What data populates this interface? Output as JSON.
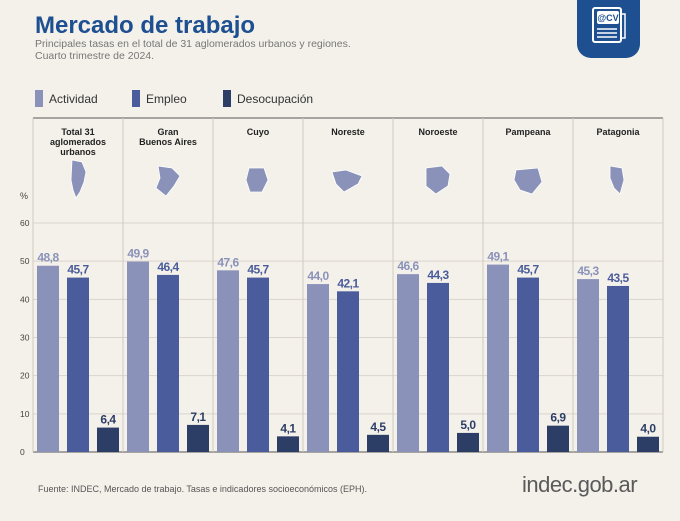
{
  "header": {
    "title": "Mercado de trabajo",
    "subtitle_line1": "Principales tasas en el total de 31 aglomerados urbanos y regiones.",
    "subtitle_line2": "Cuarto trimestre de 2024."
  },
  "badge": {
    "text": "@CV",
    "icon": "cv-document-icon"
  },
  "legend": [
    {
      "label": "Actividad",
      "color": "#8b92ba"
    },
    {
      "label": "Empleo",
      "color": "#4a5c9b"
    },
    {
      "label": "Desocupación",
      "color": "#2c3e66"
    }
  ],
  "footer": {
    "source": "Fuente: INDEC, Mercado de trabajo. Tasas e indicadores socioeconómicos (EPH).",
    "brand": "indec.gob.ar"
  },
  "chart_data": {
    "type": "bar",
    "title": "Mercado de trabajo",
    "ylabel": "%",
    "ylim": [
      0,
      60
    ],
    "yticks": [
      0,
      10,
      20,
      30,
      40,
      50,
      60
    ],
    "grid": true,
    "legend_position": "top-left",
    "categories": [
      "Total 31 aglomerados urbanos",
      "Gran Buenos Aires",
      "Cuyo",
      "Noreste",
      "Noroeste",
      "Pampeana",
      "Patagonia"
    ],
    "category_labels": [
      [
        "Total 31",
        "aglomerados",
        "urbanos"
      ],
      [
        "Gran",
        "Buenos Aires"
      ],
      [
        "Cuyo"
      ],
      [
        "Noreste"
      ],
      [
        "Noroeste"
      ],
      [
        "Pampeana"
      ],
      [
        "Patagonia"
      ]
    ],
    "category_icons": [
      "map-argentina-icon",
      "map-gran-buenos-aires-icon",
      "map-cuyo-icon",
      "map-noreste-icon",
      "map-noroeste-icon",
      "map-pampeana-icon",
      "map-patagonia-icon"
    ],
    "series": [
      {
        "name": "Actividad",
        "color": "#8b92ba",
        "values": [
          48.8,
          49.9,
          47.6,
          44.0,
          46.6,
          49.1,
          45.3
        ],
        "labels": [
          "48,8",
          "49,9",
          "47,6",
          "44,0",
          "46,6",
          "49,1",
          "45,3"
        ]
      },
      {
        "name": "Empleo",
        "color": "#4a5c9b",
        "values": [
          45.7,
          46.4,
          45.7,
          42.1,
          44.3,
          45.7,
          43.5
        ],
        "labels": [
          "45,7",
          "46,4",
          "45,7",
          "42,1",
          "44,3",
          "45,7",
          "43,5"
        ]
      },
      {
        "name": "Desocupación",
        "color": "#2c3e66",
        "values": [
          6.4,
          7.1,
          4.1,
          4.5,
          5.0,
          6.9,
          4.0
        ],
        "labels": [
          "6,4",
          "7,1",
          "4,1",
          "4,5",
          "5,0",
          "6,9",
          "4,0"
        ]
      }
    ]
  }
}
